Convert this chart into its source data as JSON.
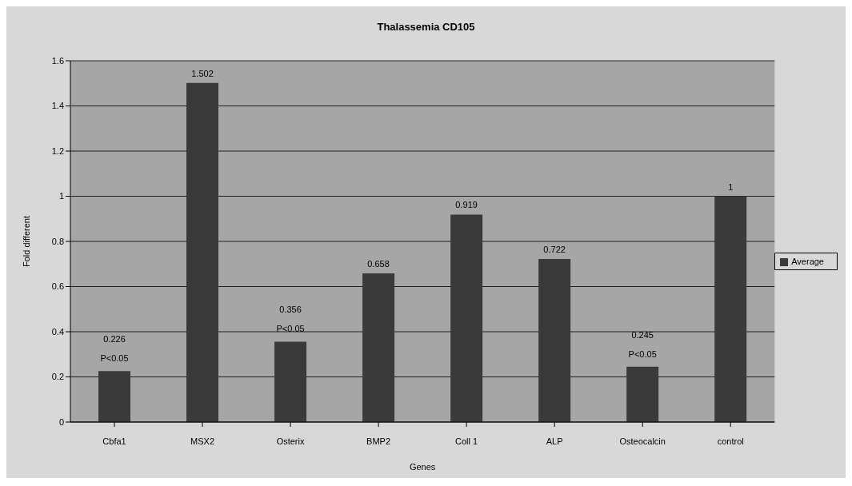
{
  "chart_data": {
    "type": "bar",
    "title": "Thalassemia CD105",
    "xlabel": "Genes",
    "ylabel": "Fold different",
    "categories": [
      "Cbfa1",
      "MSX2",
      "Osterix",
      "BMP2",
      "Coll 1",
      "ALP",
      "Osteocalcin",
      "control"
    ],
    "series": [
      {
        "name": "Average",
        "color": "#3a3a3a",
        "values": [
          0.226,
          1.502,
          0.356,
          0.658,
          0.919,
          0.722,
          0.245,
          1
        ]
      }
    ],
    "ylim": [
      0,
      1.6
    ],
    "yticks": [
      0,
      0.2,
      0.4,
      0.6,
      0.8,
      1,
      1.2,
      1.4,
      1.6
    ],
    "grid": "y",
    "legend": "right",
    "data_labels": true,
    "annotations": [
      {
        "text": "P<0.05",
        "x": "Cbfa1",
        "y": 0.226
      },
      {
        "text": "P<0.05",
        "x": "Osterix",
        "y": 0.356
      },
      {
        "text": "P<0.05",
        "x": "Osteocalcin",
        "y": 0.245
      }
    ]
  }
}
